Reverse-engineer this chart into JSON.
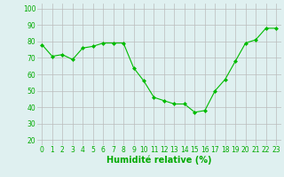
{
  "x": [
    0,
    1,
    2,
    3,
    4,
    5,
    6,
    7,
    8,
    9,
    10,
    11,
    12,
    13,
    14,
    15,
    16,
    17,
    18,
    19,
    20,
    21,
    22,
    23
  ],
  "y": [
    78,
    71,
    72,
    69,
    76,
    77,
    79,
    79,
    79,
    64,
    56,
    46,
    44,
    42,
    42,
    37,
    38,
    50,
    57,
    68,
    79,
    81,
    88,
    88
  ],
  "line_color": "#00bb00",
  "marker": "D",
  "marker_size": 2.0,
  "bg_color": "#dff0f0",
  "grid_color": "#bbbbbb",
  "xlabel": "Humidité relative (%)",
  "xlabel_color": "#00aa00",
  "xlabel_fontsize": 7,
  "ylabel_ticks": [
    20,
    30,
    40,
    50,
    60,
    70,
    80,
    90,
    100
  ],
  "ylim": [
    17,
    103
  ],
  "xlim": [
    -0.5,
    23.5
  ],
  "tick_color": "#00aa00",
  "tick_fontsize": 5.5,
  "title": ""
}
